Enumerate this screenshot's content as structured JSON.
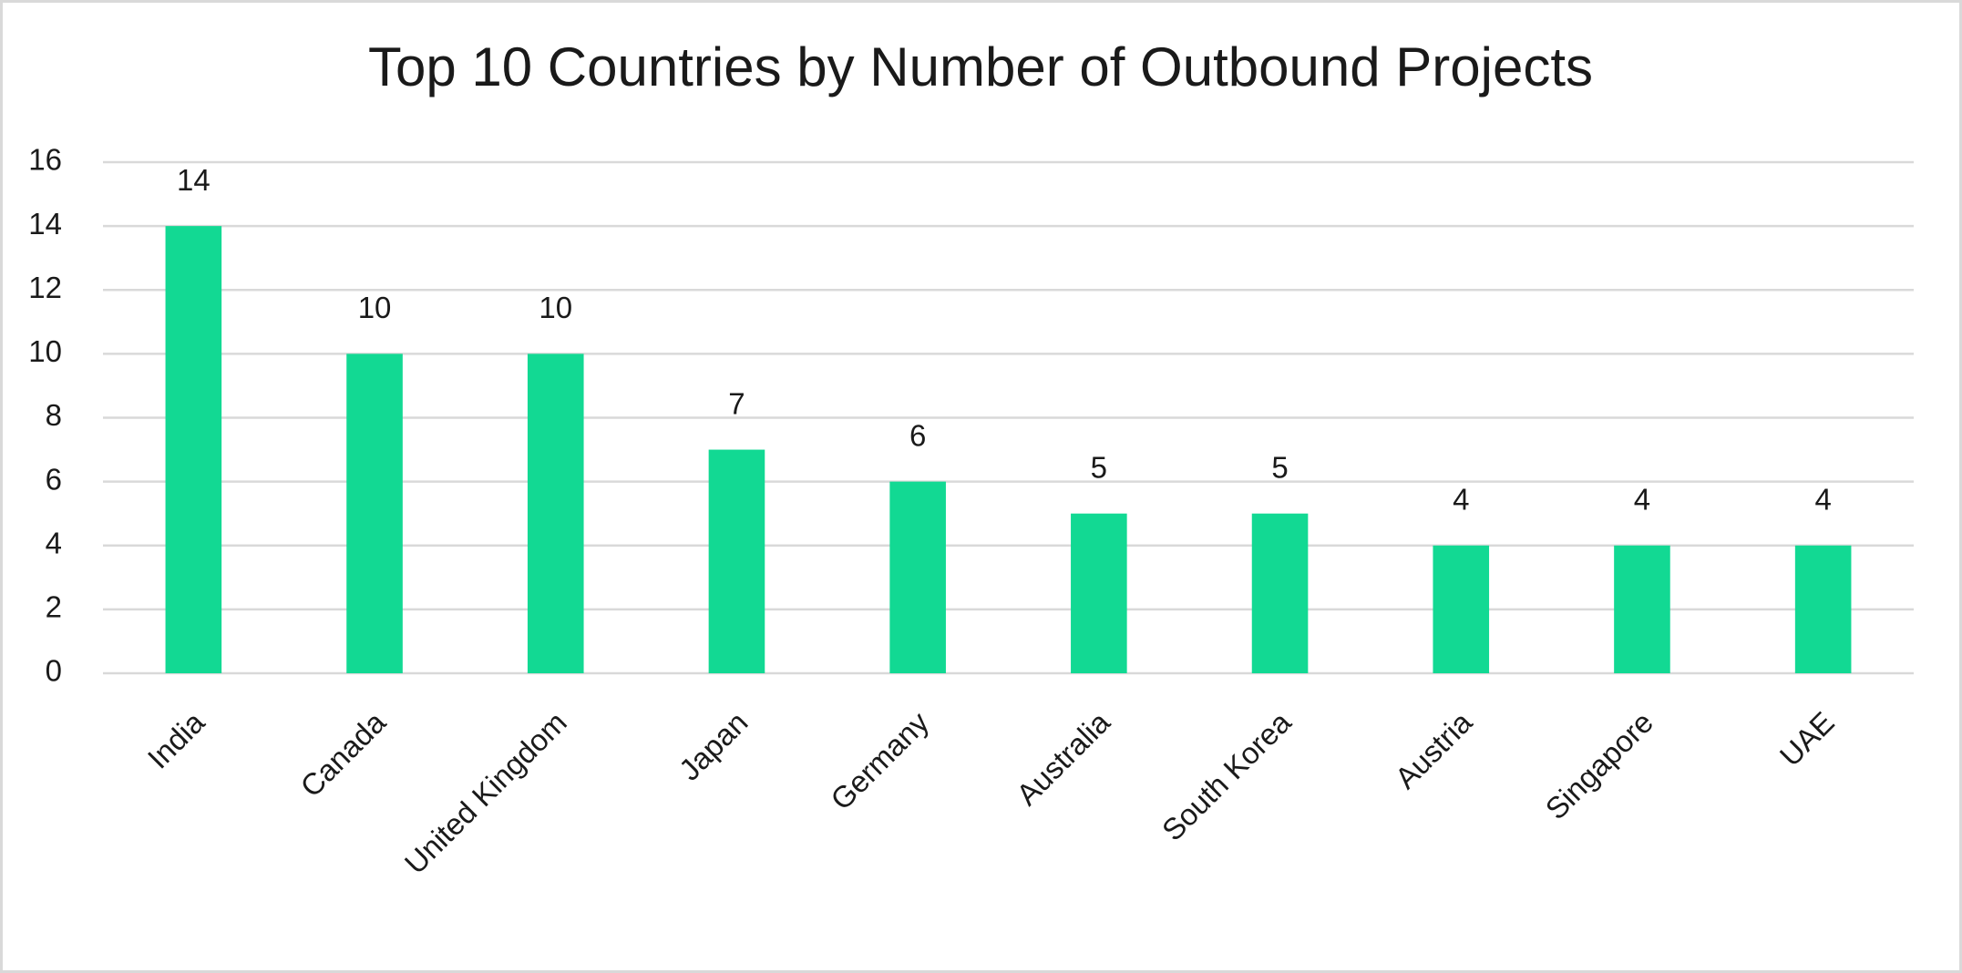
{
  "chart_data": {
    "type": "bar",
    "title": "Top 10 Countries by Number of Outbound Projects",
    "categories": [
      "India",
      "Canada",
      "United Kingdom",
      "Japan",
      "Germany",
      "Australia",
      "South Korea",
      "Austria",
      "Singapore",
      "UAE"
    ],
    "values": [
      14,
      10,
      10,
      7,
      6,
      5,
      5,
      4,
      4,
      4
    ],
    "color": "#12d993",
    "ylim": [
      0,
      16
    ],
    "yticks": [
      0,
      2,
      4,
      6,
      8,
      10,
      12,
      14,
      16
    ],
    "grid": true,
    "data_labels": true
  }
}
